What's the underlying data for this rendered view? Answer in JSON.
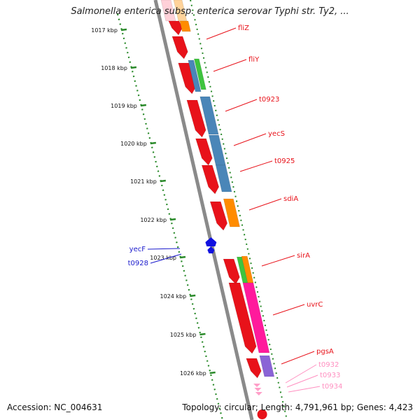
{
  "title": "Salmonella enterica subsp. enterica serovar Typhi str. Ty2, ...",
  "footer": {
    "accession": "Accession: NC_004631",
    "stats": "Topology: circular; Length: 4,791,961 bp; Genes: 4,423"
  },
  "scale_labels": [
    "1017 kbp",
    "1018 kbp",
    "1019 kbp",
    "1020 kbp",
    "1021 kbp",
    "1022 kbp",
    "1023 kbp",
    "1024 kbp",
    "1025 kbp",
    "1026 kbp"
  ],
  "colors": {
    "forward_gene": "#e8121a",
    "fli_cog": "#ff8c00",
    "blue_cog": "#4a86b8",
    "green_cog": "#3ec43e",
    "pink_cog": "#ff1a9c",
    "purple_cog": "#8a64d6",
    "reverse_gene": "#1010e0",
    "light_pink": "#ff9ec8",
    "backbone": "#808080",
    "scale_dots": "#2a8a2a"
  },
  "genes": [
    {
      "name": "fliZ",
      "color": "#e8121a"
    },
    {
      "name": "fliY",
      "color": "#e8121a"
    },
    {
      "name": "t0923",
      "color": "#e8121a"
    },
    {
      "name": "yecS",
      "color": "#e8121a"
    },
    {
      "name": "t0925",
      "color": "#e8121a"
    },
    {
      "name": "sdiA",
      "color": "#e8121a"
    },
    {
      "name": "sirA",
      "color": "#e8121a"
    },
    {
      "name": "uvrC",
      "color": "#e8121a"
    },
    {
      "name": "pgsA",
      "color": "#e8121a"
    },
    {
      "name": "t0932",
      "color": "#ff8fc0"
    },
    {
      "name": "t0933",
      "color": "#ff8fc0"
    },
    {
      "name": "t0934",
      "color": "#ff8fc0"
    },
    {
      "name": "yecF",
      "color": "#1a1acc"
    },
    {
      "name": "t0928",
      "color": "#1a1acc"
    }
  ]
}
